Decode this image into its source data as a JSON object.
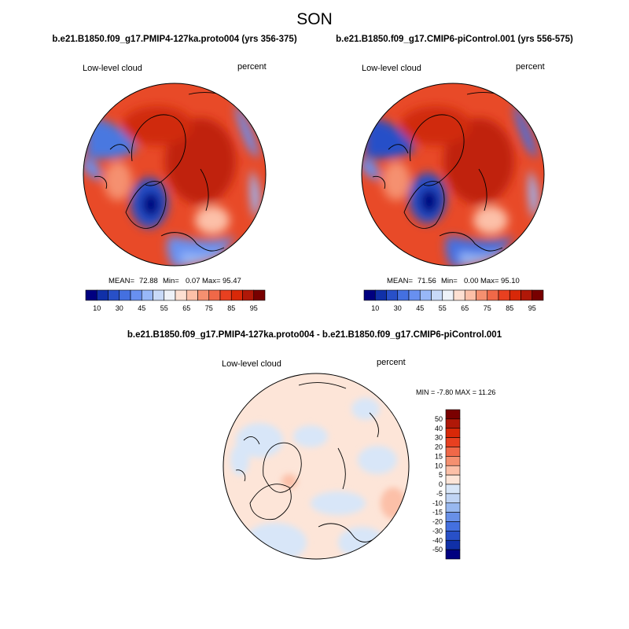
{
  "figure": {
    "season": "SON",
    "panel_left_title": "b.e21.B1850.f09_g17.PMIP4-127ka.proto004 (yrs 356-375)",
    "panel_right_title": "b.e21.B1850.f09_g17.CMIP6-piControl.001 (yrs 556-575)",
    "diff_title": "b.e21.B1850.f09_g17.PMIP4-127ka.proto004 - b.e21.B1850.f09_g17.CMIP6-piControl.001"
  },
  "chart_data": [
    {
      "type": "heatmap",
      "projection": "north polar stereographic",
      "variable": "Low-level cloud",
      "units": "percent",
      "stats": {
        "mean_label": "MEAN=",
        "mean": "72.88",
        "min_label": "Min=",
        "min": "0.07",
        "max_label": "Max=",
        "max": "95.47"
      },
      "colorbar": {
        "orientation": "horizontal",
        "levels": [
          10,
          20,
          30,
          40,
          45,
          50,
          55,
          60,
          65,
          70,
          75,
          80,
          85,
          90,
          95
        ],
        "tick_labels": [
          "10",
          "30",
          "45",
          "55",
          "65",
          "75",
          "85",
          "95"
        ],
        "colors": [
          "#000080",
          "#1030a8",
          "#2850c8",
          "#4470e0",
          "#6890f0",
          "#98b8f8",
          "#c8daf8",
          "#eef2f8",
          "#fde0d2",
          "#fcc0a8",
          "#f59070",
          "#f06848",
          "#e84020",
          "#d82808",
          "#b01808",
          "#780000"
        ]
      }
    },
    {
      "type": "heatmap",
      "projection": "north polar stereographic",
      "variable": "Low-level cloud",
      "units": "percent",
      "stats": {
        "mean_label": "MEAN=",
        "mean": "71.56",
        "min_label": "Min=",
        "min": "0.00",
        "max_label": "Max=",
        "max": "95.10"
      },
      "colorbar": {
        "orientation": "horizontal",
        "levels": [
          10,
          20,
          30,
          40,
          45,
          50,
          55,
          60,
          65,
          70,
          75,
          80,
          85,
          90,
          95
        ],
        "tick_labels": [
          "10",
          "30",
          "45",
          "55",
          "65",
          "75",
          "85",
          "95"
        ],
        "colors": [
          "#000080",
          "#1030a8",
          "#2850c8",
          "#4470e0",
          "#6890f0",
          "#98b8f8",
          "#c8daf8",
          "#eef2f8",
          "#fde0d2",
          "#fcc0a8",
          "#f59070",
          "#f06848",
          "#e84020",
          "#d82808",
          "#b01808",
          "#780000"
        ]
      }
    },
    {
      "type": "heatmap",
      "projection": "north polar stereographic",
      "variable": "Low-level cloud",
      "units": "percent",
      "stats_line": "MIN =  -7.80 MAX =  11.26",
      "colorbar": {
        "orientation": "vertical",
        "tick_labels": [
          "50",
          "40",
          "30",
          "20",
          "15",
          "10",
          "5",
          "0",
          "-5",
          "-10",
          "-15",
          "-20",
          "-30",
          "-40",
          "-50"
        ],
        "colors": [
          "#7a0000",
          "#b01808",
          "#d82808",
          "#e84020",
          "#f06848",
          "#f59070",
          "#fcc0a8",
          "#fde5d8",
          "#d8e6f8",
          "#c0d4f4",
          "#98b8f0",
          "#6890e8",
          "#4470e0",
          "#2850c8",
          "#1030a8",
          "#000080"
        ]
      }
    }
  ]
}
